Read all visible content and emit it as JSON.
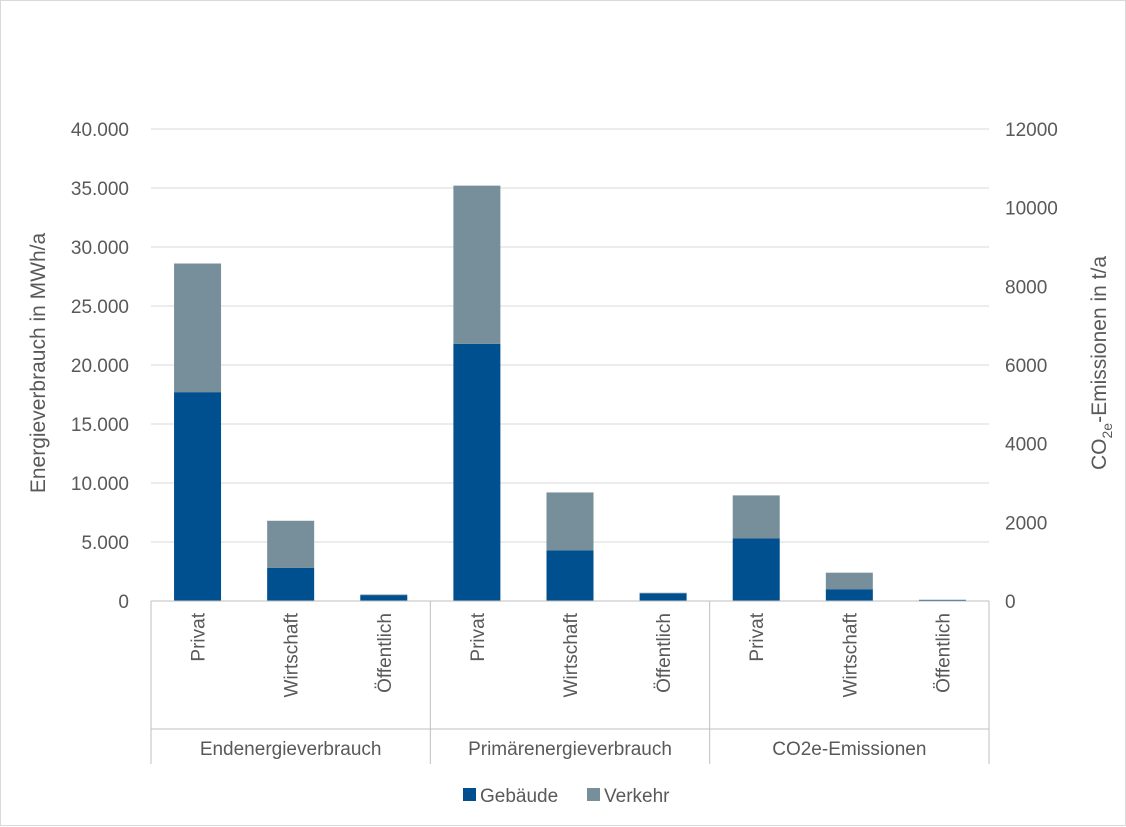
{
  "chart_data": {
    "type": "bar",
    "stacked": true,
    "groups": [
      "Endenergieverbrauch",
      "Primärenergieverbrauch",
      "CO2e-Emissionen"
    ],
    "categories": [
      "Privat",
      "Wirtschaft",
      "Öffentlich",
      "Privat",
      "Wirtschaft",
      "Öffentlich",
      "Privat",
      "Wirtschaft",
      "Öffentlich"
    ],
    "series": [
      {
        "name": "Gebäude",
        "color": "#00508f",
        "values": [
          17700,
          2800,
          500,
          21800,
          4300,
          650,
          5300,
          1000,
          100
        ]
      },
      {
        "name": "Verkehr",
        "color": "#778f9b",
        "values": [
          10900,
          4000,
          50,
          13400,
          4900,
          50,
          3650,
          1400,
          0
        ]
      }
    ],
    "yaxis_left": {
      "label": "Energieverbrauch in MWh/a",
      "ylim": [
        0,
        40000
      ],
      "ticks": [
        "0",
        "5.000",
        "10.000",
        "15.000",
        "20.000",
        "25.000",
        "30.000",
        "35.000",
        "40.000"
      ]
    },
    "yaxis_right": {
      "label_main": "CO",
      "label_sub": "2e",
      "label_rest": "-Emissionen in t/a",
      "ylim": [
        0,
        12000
      ],
      "ticks": [
        "0",
        "2000",
        "4000",
        "6000",
        "8000",
        "10000",
        "12000"
      ]
    },
    "grid": true,
    "legend": "bottom"
  }
}
